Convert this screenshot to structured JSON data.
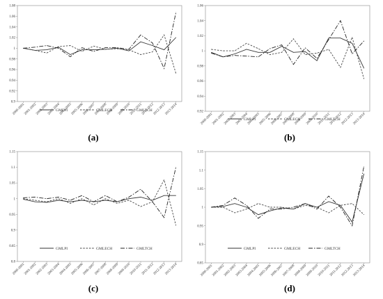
{
  "chart_data": [
    {
      "type": "line",
      "caption": "(a)",
      "ylim": [
        0.9,
        1.08
      ],
      "yticks": [
        0.9,
        0.92,
        0.94,
        0.96,
        0.98,
        1,
        1.02,
        1.04,
        1.06,
        1.08
      ],
      "categories": [
        "2000-2001",
        "2001-2002",
        "2002-2003",
        "2003-2004",
        "2004-2005",
        "2005-2006",
        "2006-2007",
        "2007-2008",
        "2008-2009",
        "2009-2010",
        "2010-2011",
        "2011-2012",
        "2012-2013",
        "2013-2014"
      ],
      "legend_position": "bottom",
      "series": [
        {
          "name": "GMLPI",
          "style": "solid",
          "values": [
            1.0,
            0.996,
            0.997,
            1.002,
            0.988,
            0.997,
            0.997,
            0.998,
            1.0,
            0.995,
            1.012,
            1.005,
            0.997,
            1.02
          ]
        },
        {
          "name": "GMLECH",
          "style": "short-dash",
          "values": [
            1.0,
            0.996,
            0.991,
            1.003,
            1.005,
            0.994,
            1.004,
            0.998,
            0.999,
            0.997,
            0.988,
            0.993,
            1.025,
            0.953
          ]
        },
        {
          "name": "GMLTCH",
          "style": "long-dash",
          "values": [
            1.0,
            1.002,
            1.005,
            1.0,
            0.984,
            1.001,
            0.994,
            1.001,
            1.001,
            0.998,
            1.025,
            1.01,
            0.962,
            1.067
          ]
        }
      ]
    },
    {
      "type": "line",
      "caption": "(b)",
      "ylim": [
        0.92,
        1.06
      ],
      "yticks": [
        0.92,
        0.94,
        0.96,
        0.98,
        1,
        1.02,
        1.04,
        1.06
      ],
      "categories": [
        "2000-2001",
        "2001-2002",
        "2002-2003",
        "2003-2004",
        "2004-2005",
        "2005-2006",
        "2006-2007",
        "2007-2008",
        "2008-2009",
        "2009-2010",
        "2010-2011",
        "2011-2012",
        "2012-2013",
        "2013-2014"
      ],
      "legend_position": "bottom",
      "series": [
        {
          "name": "GMLPI",
          "style": "solid",
          "values": [
            0.998,
            0.992,
            0.996,
            1.002,
            0.998,
            0.998,
            1.006,
            0.998,
            0.999,
            0.987,
            1.017,
            1.017,
            1.01,
            0.977
          ]
        },
        {
          "name": "GMLECH",
          "style": "short-dash",
          "values": [
            1.002,
            1.0,
            1.0,
            1.01,
            1.003,
            0.995,
            0.998,
            1.016,
            0.995,
            0.997,
            1.002,
            0.978,
            1.018,
            0.963
          ]
        },
        {
          "name": "GMLTCH",
          "style": "long-dash",
          "values": [
            0.997,
            0.992,
            0.994,
            0.993,
            0.992,
            1.003,
            1.008,
            0.982,
            1.004,
            0.99,
            1.015,
            1.04,
            0.996,
            1.013
          ]
        }
      ]
    },
    {
      "type": "line",
      "caption": "(c)",
      "ylim": [
        0.8,
        1.15
      ],
      "yticks": [
        0.8,
        0.85,
        0.9,
        0.95,
        1,
        1.05,
        1.1,
        1.15
      ],
      "categories": [
        "2000-2001",
        "2001-2002",
        "2002-2003",
        "2003-2004",
        "2004-2005",
        "2005-2006",
        "2006-2007",
        "2007-2008",
        "2008-2009",
        "2009-2010",
        "2010-2011",
        "2011-2012",
        "2012-2013",
        "2013-2014"
      ],
      "legend_position": "bottom",
      "series": [
        {
          "name": "GMLPI",
          "style": "solid",
          "values": [
            0.998,
            0.99,
            0.988,
            0.995,
            0.99,
            0.995,
            0.99,
            0.995,
            0.99,
            1.0,
            1.005,
            0.995,
            1.01,
            1.01
          ]
        },
        {
          "name": "GMLECH",
          "style": "short-dash",
          "values": [
            1.0,
            0.995,
            0.99,
            1.0,
            0.985,
            1.0,
            0.98,
            1.0,
            0.985,
            0.995,
            0.975,
            0.99,
            1.06,
            0.915
          ]
        },
        {
          "name": "GMLTCH",
          "style": "long-dash",
          "values": [
            1.003,
            1.005,
            1.0,
            1.005,
            0.995,
            1.01,
            0.99,
            1.01,
            0.99,
            1.005,
            1.03,
            0.99,
            0.94,
            1.1
          ]
        }
      ]
    },
    {
      "type": "line",
      "caption": "(d)",
      "ylim": [
        0.85,
        1.15
      ],
      "yticks": [
        0.85,
        0.9,
        0.95,
        1,
        1.05,
        1.1,
        1.15
      ],
      "categories": [
        "2000-2001",
        "2001-2002",
        "2002-2003",
        "2003-2004",
        "2004-2005",
        "2005-2006",
        "2006-2007",
        "2007-2008",
        "2008-2009",
        "2009-2010",
        "2010-2011",
        "2011-2012",
        "2012-2013",
        "2013-2014"
      ],
      "legend_position": "bottom",
      "series": [
        {
          "name": "GMLPI",
          "style": "solid",
          "values": [
            1.0,
            1.002,
            1.01,
            1.0,
            0.98,
            0.99,
            0.998,
            0.995,
            1.01,
            1.0,
            1.015,
            1.005,
            0.96,
            1.09
          ]
        },
        {
          "name": "GMLECH",
          "style": "short-dash",
          "values": [
            1.0,
            1.0,
            0.985,
            0.995,
            1.01,
            1.0,
            1.0,
            0.995,
            1.005,
            1.0,
            0.985,
            1.005,
            1.01,
            0.98
          ]
        },
        {
          "name": "GMLTCH",
          "style": "long-dash",
          "values": [
            1.0,
            1.005,
            1.025,
            1.005,
            0.97,
            0.995,
            0.995,
            1.0,
            1.01,
            0.995,
            1.03,
            1.0,
            0.95,
            1.11
          ]
        }
      ]
    }
  ]
}
